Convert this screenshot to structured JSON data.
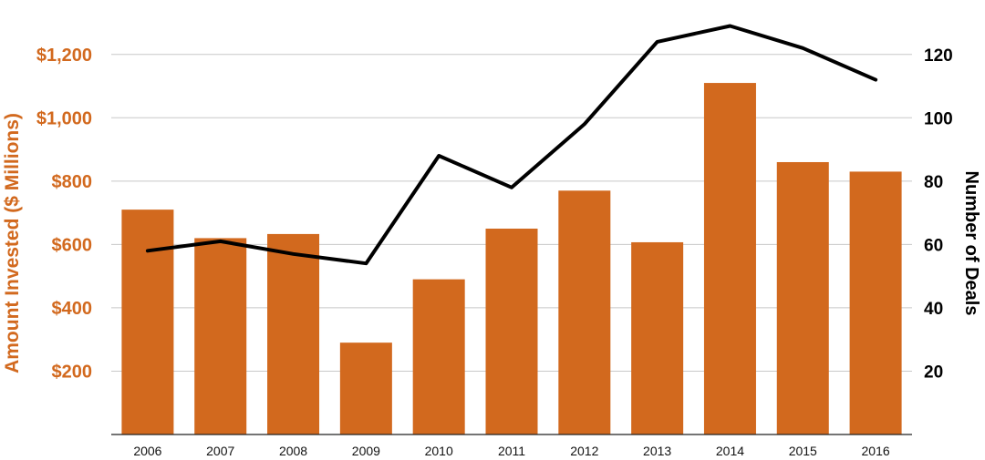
{
  "chart_data": {
    "type": "bar",
    "categories": [
      "2006",
      "2007",
      "2008",
      "2009",
      "2010",
      "2011",
      "2012",
      "2013",
      "2014",
      "2015",
      "2016"
    ],
    "series": [
      {
        "type": "bar",
        "axis": "left",
        "color": "#d2691e",
        "values": [
          710,
          620,
          633,
          290,
          490,
          650,
          770,
          607,
          1110,
          860,
          830
        ]
      },
      {
        "type": "line",
        "axis": "right",
        "color": "#000000",
        "values": [
          58,
          61,
          57,
          54,
          88,
          78,
          98,
          124,
          129,
          122,
          112
        ]
      }
    ],
    "ylabel_left": "Amount Invested ($ Millions)",
    "ylabel_right": "Number of Deals",
    "ylim_left": [
      0,
      1300
    ],
    "ylim_right": [
      0,
      130
    ],
    "yticks_left": [
      {
        "value": 200,
        "label": "$200"
      },
      {
        "value": 400,
        "label": "$400"
      },
      {
        "value": 600,
        "label": "$600"
      },
      {
        "value": 800,
        "label": "$800"
      },
      {
        "value": 1000,
        "label": "$1,000"
      },
      {
        "value": 1200,
        "label": "$1,200"
      }
    ],
    "yticks_right": [
      {
        "value": 20,
        "label": "20"
      },
      {
        "value": 40,
        "label": "40"
      },
      {
        "value": 60,
        "label": "60"
      },
      {
        "value": 80,
        "label": "80"
      },
      {
        "value": 100,
        "label": "100"
      },
      {
        "value": 120,
        "label": "120"
      }
    ],
    "grid": true,
    "accent_color": "#d2691e"
  }
}
